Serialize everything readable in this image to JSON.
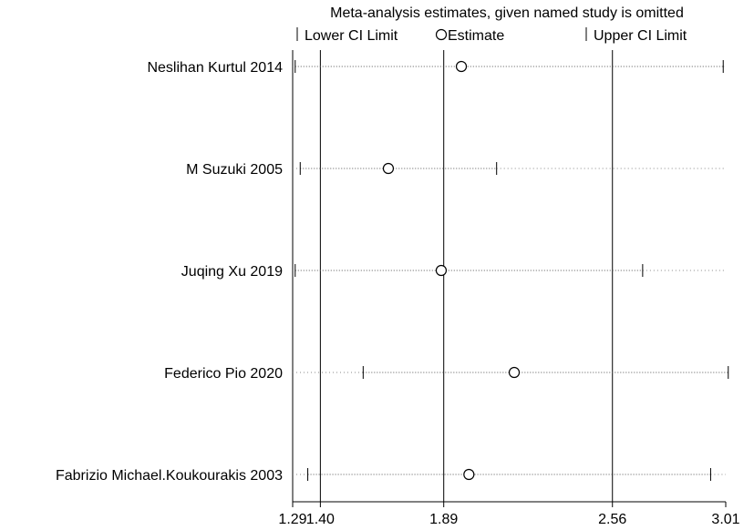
{
  "chart_data": {
    "type": "forest",
    "title": "Meta-analysis estimates, given named study is omitted",
    "legend": {
      "lower": "Lower CI Limit",
      "estimate": "Estimate",
      "upper": "Upper CI Limit",
      "placement": "top"
    },
    "xlim": [
      1.29,
      3.01
    ],
    "x_ticks": [
      {
        "value": 1.29,
        "label": "1.29"
      },
      {
        "value": 1.4,
        "label": "1.40"
      },
      {
        "value": 1.89,
        "label": "1.89"
      },
      {
        "value": 2.56,
        "label": "2.56"
      },
      {
        "value": 3.01,
        "label": "3.01"
      }
    ],
    "reference_lines": [
      1.4,
      1.89,
      2.56
    ],
    "studies": [
      {
        "name": "Neslihan Kurtul 2014",
        "lower": 1.3,
        "estimate": 1.96,
        "upper": 3.0
      },
      {
        "name": "M Suzuki 2005",
        "lower": 1.32,
        "estimate": 1.67,
        "upper": 2.1
      },
      {
        "name": "Juqing Xu 2019",
        "lower": 1.3,
        "estimate": 1.88,
        "upper": 2.68
      },
      {
        "name": "Federico Pio 2020",
        "lower": 1.57,
        "estimate": 2.17,
        "upper": 3.02
      },
      {
        "name": "Fabrizio Michael.Koukourakis 2003",
        "lower": 1.35,
        "estimate": 1.99,
        "upper": 2.95
      }
    ]
  }
}
